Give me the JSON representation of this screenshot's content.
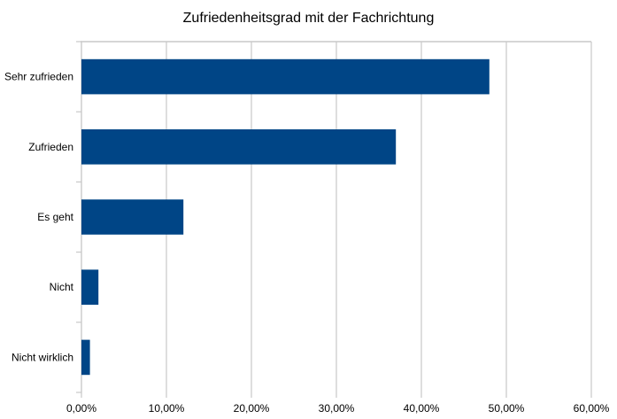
{
  "chart_data": {
    "type": "bar",
    "orientation": "horizontal",
    "title": "Zufriedenheitsgrad mit der Fachrichtung",
    "xlabel": "",
    "ylabel": "",
    "categories": [
      "Sehr zufrieden",
      "Zufrieden",
      "Es geht",
      "Nicht",
      "Nicht wirklich"
    ],
    "values": [
      48,
      37,
      12,
      2,
      1
    ],
    "xlim": [
      0,
      60
    ],
    "x_ticks": [
      "0,00%",
      "10,00%",
      "20,00%",
      "30,00%",
      "40,00%",
      "50,00%",
      "60,00%"
    ],
    "grid": true,
    "legend": "none",
    "bar_color": "#004586"
  }
}
